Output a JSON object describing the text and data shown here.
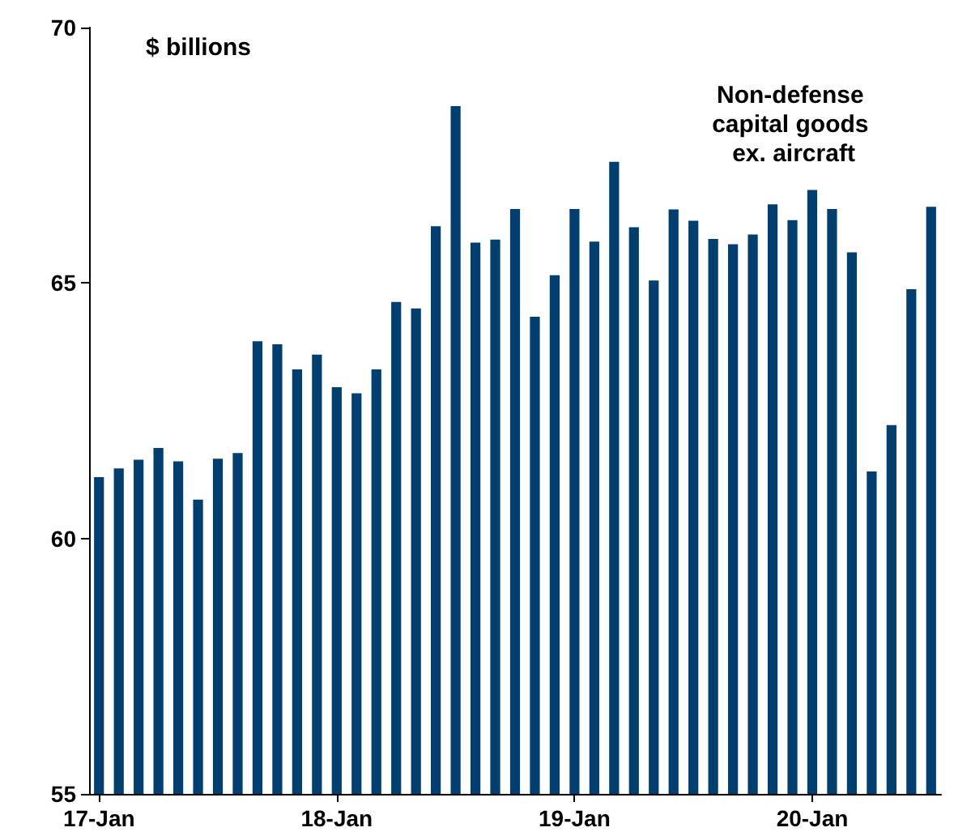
{
  "chart_data": {
    "type": "bar",
    "ylabel": "$ billions",
    "annotations": [
      "Non-defense capital goods ex. aircraft"
    ],
    "categories": [
      "17-Jan",
      null,
      null,
      null,
      null,
      null,
      null,
      null,
      null,
      null,
      null,
      null,
      "18-Jan",
      null,
      null,
      null,
      null,
      null,
      null,
      null,
      null,
      null,
      null,
      null,
      "19-Jan",
      null,
      null,
      null,
      null,
      null,
      null,
      null,
      null,
      null,
      null,
      null,
      "20-Jan",
      null,
      null,
      null,
      null,
      null,
      null
    ],
    "values": [
      61.2,
      61.37,
      61.54,
      61.77,
      61.51,
      60.76,
      61.56,
      61.67,
      63.86,
      63.8,
      63.31,
      63.6,
      62.96,
      62.84,
      63.31,
      64.63,
      64.5,
      66.11,
      68.46,
      65.79,
      65.85,
      66.45,
      64.34,
      65.15,
      66.45,
      65.81,
      67.37,
      66.09,
      65.05,
      66.44,
      66.22,
      65.86,
      65.76,
      65.95,
      66.54,
      66.23,
      66.82,
      66.45,
      65.6,
      61.31,
      62.22,
      64.88,
      66.49
    ],
    "color": "#003f6f",
    "ylim": [
      55,
      70
    ],
    "yticks": [
      55,
      60,
      65,
      70
    ],
    "grid": false
  }
}
